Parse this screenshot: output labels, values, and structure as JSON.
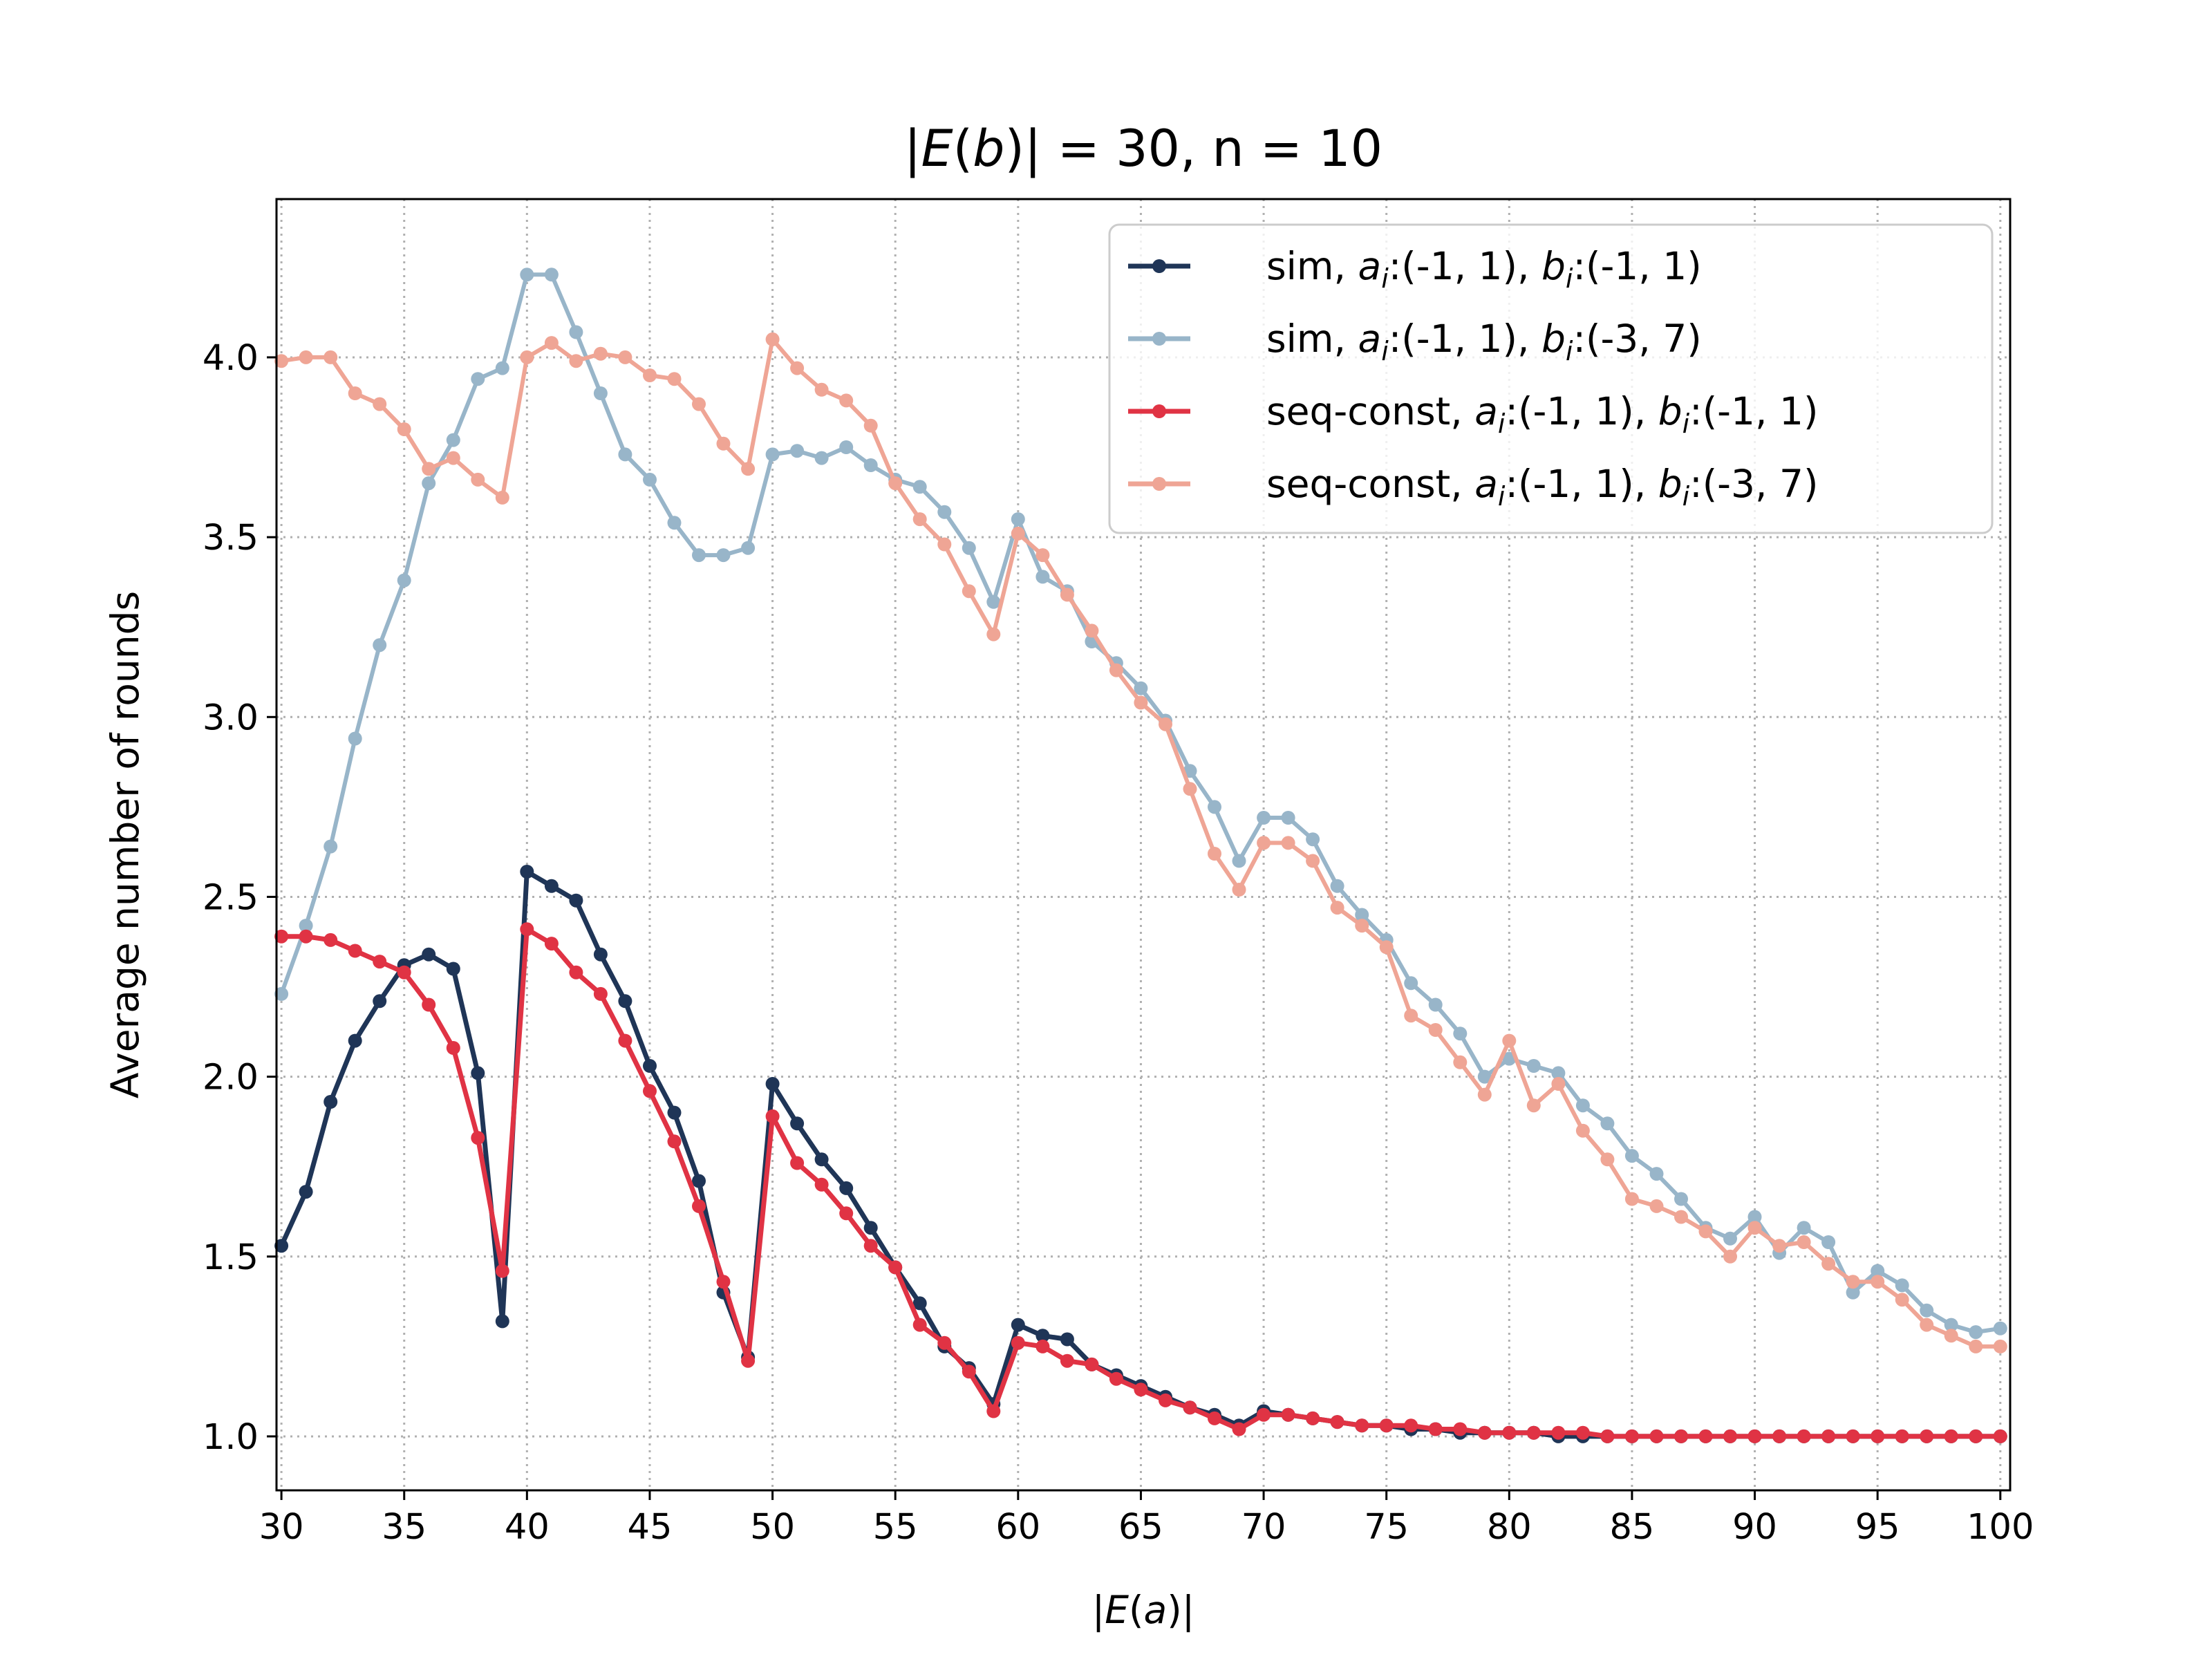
{
  "chart_data": {
    "type": "line",
    "title": "|E(b)| = 30, n = 10",
    "xlabel": "|E(a)|",
    "ylabel": "Average number of rounds",
    "xlim": [
      29.8,
      100.4
    ],
    "ylim": [
      0.85,
      4.44
    ],
    "xticks": [
      30,
      35,
      40,
      45,
      50,
      55,
      60,
      65,
      70,
      75,
      80,
      85,
      90,
      95,
      100
    ],
    "yticks": [
      1.0,
      1.5,
      2.0,
      2.5,
      3.0,
      3.5,
      4.0
    ],
    "grid": true,
    "legend_position": "top-right",
    "x": [
      30,
      31,
      32,
      33,
      34,
      35,
      36,
      37,
      38,
      39,
      40,
      41,
      42,
      43,
      44,
      45,
      46,
      47,
      48,
      49,
      50,
      51,
      52,
      53,
      54,
      55,
      56,
      57,
      58,
      59,
      60,
      61,
      62,
      63,
      64,
      65,
      66,
      67,
      68,
      69,
      70,
      71,
      72,
      73,
      74,
      75,
      76,
      77,
      78,
      79,
      80,
      81,
      82,
      83,
      84,
      85,
      86,
      87,
      88,
      89,
      90,
      91,
      92,
      93,
      94,
      95,
      96,
      97,
      98,
      99,
      100
    ],
    "series": [
      {
        "name": "sim, a_i:(-1, 1), b_i:(-1, 1)",
        "color": "#1f3557",
        "values": [
          1.53,
          1.68,
          1.93,
          2.1,
          2.21,
          2.31,
          2.34,
          2.3,
          2.01,
          1.32,
          2.57,
          2.53,
          2.49,
          2.34,
          2.21,
          2.03,
          1.9,
          1.71,
          1.4,
          1.22,
          1.98,
          1.87,
          1.77,
          1.69,
          1.58,
          1.47,
          1.37,
          1.25,
          1.19,
          1.09,
          1.31,
          1.28,
          1.27,
          1.2,
          1.17,
          1.14,
          1.11,
          1.08,
          1.06,
          1.03,
          1.07,
          1.06,
          1.05,
          1.04,
          1.03,
          1.03,
          1.02,
          1.02,
          1.01,
          1.01,
          1.01,
          1.01,
          1.0,
          1.0,
          1.0,
          1.0,
          1.0,
          1.0,
          1.0,
          1.0,
          1.0,
          1.0,
          1.0,
          1.0,
          1.0,
          1.0,
          1.0,
          1.0,
          1.0,
          1.0,
          1.0
        ]
      },
      {
        "name": "sim, a_i:(-1, 1), b_i:(-3, 7)",
        "color": "#98b5c9",
        "values": [
          2.23,
          2.42,
          2.64,
          2.94,
          3.2,
          3.38,
          3.65,
          3.77,
          3.94,
          3.97,
          4.23,
          4.23,
          4.07,
          3.9,
          3.73,
          3.66,
          3.54,
          3.45,
          3.45,
          3.47,
          3.73,
          3.74,
          3.72,
          3.75,
          3.7,
          3.66,
          3.64,
          3.57,
          3.47,
          3.32,
          3.55,
          3.39,
          3.35,
          3.21,
          3.15,
          3.08,
          2.99,
          2.85,
          2.75,
          2.6,
          2.72,
          2.72,
          2.66,
          2.53,
          2.45,
          2.38,
          2.26,
          2.2,
          2.12,
          2.0,
          2.05,
          2.03,
          2.01,
          1.92,
          1.87,
          1.78,
          1.73,
          1.66,
          1.58,
          1.55,
          1.61,
          1.51,
          1.58,
          1.54,
          1.4,
          1.46,
          1.42,
          1.35,
          1.31,
          1.29,
          1.3
        ]
      },
      {
        "name": "seq-const, a_i:(-1, 1), b_i:(-1, 1)",
        "color": "#e03344",
        "values": [
          2.39,
          2.39,
          2.38,
          2.35,
          2.32,
          2.29,
          2.2,
          2.08,
          1.83,
          1.46,
          2.41,
          2.37,
          2.29,
          2.23,
          2.1,
          1.96,
          1.82,
          1.64,
          1.43,
          1.21,
          1.89,
          1.76,
          1.7,
          1.62,
          1.53,
          1.47,
          1.31,
          1.26,
          1.18,
          1.07,
          1.26,
          1.25,
          1.21,
          1.2,
          1.16,
          1.13,
          1.1,
          1.08,
          1.05,
          1.02,
          1.06,
          1.06,
          1.05,
          1.04,
          1.03,
          1.03,
          1.03,
          1.02,
          1.02,
          1.01,
          1.01,
          1.01,
          1.01,
          1.01,
          1.0,
          1.0,
          1.0,
          1.0,
          1.0,
          1.0,
          1.0,
          1.0,
          1.0,
          1.0,
          1.0,
          1.0,
          1.0,
          1.0,
          1.0,
          1.0,
          1.0
        ]
      },
      {
        "name": "seq-const, a_i:(-1, 1), b_i:(-3, 7)",
        "color": "#efa595",
        "values": [
          3.99,
          4.0,
          4.0,
          3.9,
          3.87,
          3.8,
          3.69,
          3.72,
          3.66,
          3.61,
          4.0,
          4.04,
          3.99,
          4.01,
          4.0,
          3.95,
          3.94,
          3.87,
          3.76,
          3.69,
          4.05,
          3.97,
          3.91,
          3.88,
          3.81,
          3.65,
          3.55,
          3.48,
          3.35,
          3.23,
          3.51,
          3.45,
          3.34,
          3.24,
          3.13,
          3.04,
          2.98,
          2.8,
          2.62,
          2.52,
          2.65,
          2.65,
          2.6,
          2.47,
          2.42,
          2.36,
          2.17,
          2.13,
          2.04,
          1.95,
          2.1,
          1.92,
          1.98,
          1.85,
          1.77,
          1.66,
          1.64,
          1.61,
          1.57,
          1.5,
          1.58,
          1.53,
          1.54,
          1.48,
          1.43,
          1.43,
          1.38,
          1.31,
          1.28,
          1.25,
          1.25
        ]
      }
    ]
  },
  "legend": [
    {
      "prefix": "sim, ",
      "a": "a",
      "a_sub": "i",
      "a_range": ":(-1, 1), ",
      "b": "b",
      "b_sub": "i",
      "b_range": ":(-1, 1)"
    },
    {
      "prefix": "sim, ",
      "a": "a",
      "a_sub": "i",
      "a_range": ":(-1, 1), ",
      "b": "b",
      "b_sub": "i",
      "b_range": ":(-3, 7)"
    },
    {
      "prefix": "seq-const, ",
      "a": "a",
      "a_sub": "i",
      "a_range": ":(-1, 1), ",
      "b": "b",
      "b_sub": "i",
      "b_range": ":(-1, 1)"
    },
    {
      "prefix": "seq-const, ",
      "a": "a",
      "a_sub": "i",
      "a_range": ":(-1, 1), ",
      "b": "b",
      "b_sub": "i",
      "b_range": ":(-3, 7)"
    }
  ],
  "title_parts": {
    "pre": "|",
    "E": "E",
    "open": "(",
    "b": "b",
    "close": ")",
    "post": "| = 30, n = 10"
  },
  "xlabel_parts": {
    "pre": "|",
    "E": "E",
    "open": "(",
    "a": "a",
    "close": ")",
    "post": "|"
  }
}
